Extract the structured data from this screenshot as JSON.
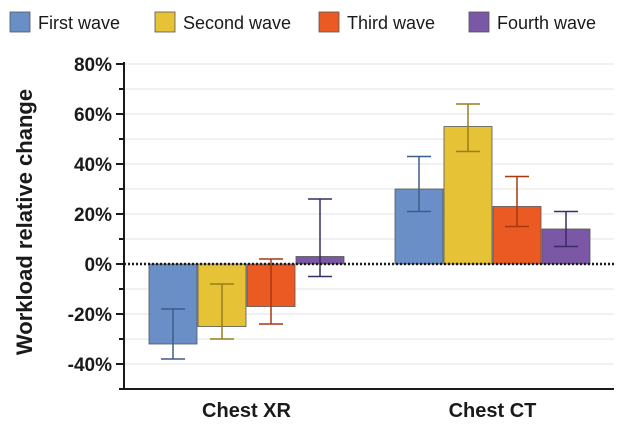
{
  "chart_data": {
    "type": "bar",
    "ylabel": "Workload relative change",
    "ylim": [
      -50,
      80
    ],
    "yticks": [
      80,
      60,
      40,
      20,
      0,
      -20,
      -40
    ],
    "ytick_labels": [
      "80%",
      "60%",
      "40%",
      "20%",
      "0%",
      "-20%",
      "-40%"
    ],
    "categories": [
      "Chest XR",
      "Chest CT"
    ],
    "legend_position": "top",
    "grid": true,
    "series": [
      {
        "name": "First wave",
        "color": "#6a8fc7",
        "values": [
          -32,
          30
        ],
        "err_low": [
          -38,
          21
        ],
        "err_high": [
          -18,
          43
        ]
      },
      {
        "name": "Second wave",
        "color": "#e6c236",
        "values": [
          -25,
          55
        ],
        "err_low": [
          -30,
          45
        ],
        "err_high": [
          -8,
          64
        ]
      },
      {
        "name": "Third wave",
        "color": "#ea5a22",
        "values": [
          -17,
          23
        ],
        "err_low": [
          -24,
          15
        ],
        "err_high": [
          2,
          35
        ]
      },
      {
        "name": "Fourth wave",
        "color": "#7a58a6",
        "values": [
          3,
          14
        ],
        "err_low": [
          -5,
          7
        ],
        "err_high": [
          26,
          21
        ]
      }
    ]
  }
}
